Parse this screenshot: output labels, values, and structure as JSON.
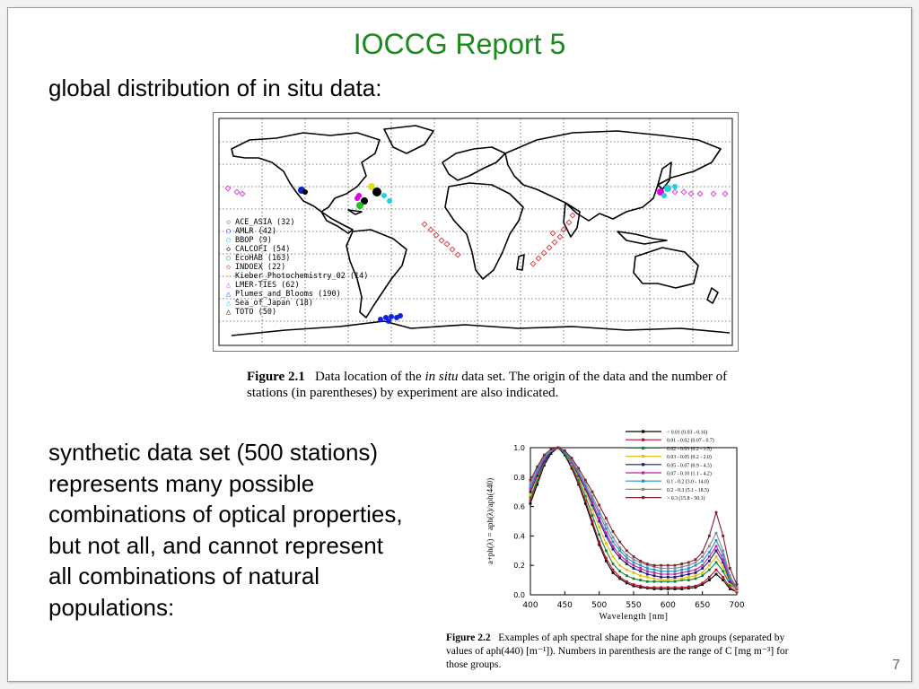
{
  "slide": {
    "title": "IOCCG Report 5",
    "bullet1": "global distribution of in situ data:",
    "body2_lines": [
      "synthetic data set (500 stations)",
      "represents many possible",
      "combinations of optical properties,",
      "but not all, and cannot represent",
      "all combinations of natural",
      "populations:"
    ],
    "page_number": "7"
  },
  "figure1": {
    "label": "Figure 2.1",
    "caption_pre": "Data location of the ",
    "caption_italic": "in situ",
    "caption_post": " data set. The origin of the data and the number of stations (in parentheses) by experiment are also indicated.",
    "legend": [
      {
        "label": "ACE_ASIA (32)",
        "symbol": "◇",
        "color": "#e040e0"
      },
      {
        "label": "AMLR (42)",
        "symbol": "○",
        "color": "#2040e0"
      },
      {
        "label": "BBOP (9)",
        "symbol": "○",
        "color": "#20c8e0"
      },
      {
        "label": "CALCOFI (54)",
        "symbol": "◇",
        "color": "#000000"
      },
      {
        "label": "EcoHAB (163)",
        "symbol": "○",
        "color": "#20b020"
      },
      {
        "label": "INDOEX (22)",
        "symbol": "◇",
        "color": "#e04040"
      },
      {
        "label": "Kieber_Photochemistry_02 (14)",
        "symbol": "☆",
        "color": "#e0d020"
      },
      {
        "label": "LMER-TIES (62)",
        "symbol": "△",
        "color": "#e040e0"
      },
      {
        "label": "Plumes_and_Blooms (190)",
        "symbol": "△",
        "color": "#2040e0"
      },
      {
        "label": "Sea_of_Japan (18)",
        "symbol": "△",
        "color": "#20c8e0"
      },
      {
        "label": "TOTO (50)",
        "symbol": "△",
        "color": "#000000"
      }
    ]
  },
  "figure2": {
    "label": "Figure 2.2",
    "caption": "Examples of aph spectral shape for the nine aph groups (separated by values of aph(440) [m⁻¹]). Numbers in parenthesis are the range of C [mg m⁻³] for those groups.",
    "chart_data": {
      "type": "line",
      "xlabel": "Wavelength  [nm]",
      "ylabel": "a+ph(λ) = aph(λ)/aph(440)",
      "xlim": [
        400,
        700
      ],
      "ylim": [
        0,
        1.0
      ],
      "xticks": [
        400,
        450,
        500,
        550,
        600,
        650,
        700
      ],
      "yticks": [
        0.0,
        0.2,
        0.4,
        0.6,
        0.8,
        1.0
      ],
      "x": [
        400,
        410,
        420,
        430,
        440,
        450,
        460,
        470,
        480,
        490,
        500,
        510,
        520,
        530,
        540,
        550,
        560,
        570,
        580,
        590,
        600,
        610,
        620,
        630,
        640,
        650,
        660,
        670,
        680,
        690,
        700
      ],
      "series": [
        {
          "name": "< 0.01 (0.03 - 0.16)",
          "color": "#000000",
          "values": [
            0.62,
            0.75,
            0.88,
            0.96,
            1.0,
            0.95,
            0.86,
            0.75,
            0.62,
            0.48,
            0.34,
            0.23,
            0.15,
            0.11,
            0.08,
            0.06,
            0.05,
            0.045,
            0.04,
            0.04,
            0.04,
            0.04,
            0.04,
            0.045,
            0.05,
            0.07,
            0.1,
            0.14,
            0.1,
            0.04,
            0.02
          ]
        },
        {
          "name": "0.01 - 0.02 (0.07 - 0.7)",
          "color": "#b01030",
          "values": [
            0.64,
            0.77,
            0.89,
            0.97,
            1.0,
            0.96,
            0.87,
            0.76,
            0.64,
            0.5,
            0.36,
            0.25,
            0.17,
            0.12,
            0.09,
            0.07,
            0.06,
            0.05,
            0.05,
            0.05,
            0.05,
            0.05,
            0.05,
            0.055,
            0.06,
            0.08,
            0.12,
            0.17,
            0.12,
            0.05,
            0.02
          ]
        },
        {
          "name": "0.02 - 0.03 (0.2 - 1.5)",
          "color": "#108040",
          "values": [
            0.66,
            0.78,
            0.9,
            0.97,
            1.0,
            0.96,
            0.88,
            0.78,
            0.67,
            0.54,
            0.41,
            0.3,
            0.21,
            0.16,
            0.13,
            0.11,
            0.1,
            0.09,
            0.09,
            0.09,
            0.09,
            0.09,
            0.1,
            0.1,
            0.11,
            0.13,
            0.17,
            0.22,
            0.16,
            0.07,
            0.03
          ]
        },
        {
          "name": "0.03 - 0.05 (0.2 - 2.0)",
          "color": "#e0c010",
          "values": [
            0.68,
            0.8,
            0.91,
            0.97,
            1.0,
            0.97,
            0.89,
            0.8,
            0.7,
            0.58,
            0.46,
            0.35,
            0.26,
            0.2,
            0.17,
            0.15,
            0.13,
            0.12,
            0.11,
            0.1,
            0.1,
            0.11,
            0.11,
            0.12,
            0.13,
            0.15,
            0.2,
            0.26,
            0.19,
            0.08,
            0.03
          ]
        },
        {
          "name": "0.05 - 0.07 (0.9 - 4.3)",
          "color": "#1a1a80",
          "values": [
            0.7,
            0.81,
            0.91,
            0.97,
            1.0,
            0.97,
            0.9,
            0.81,
            0.72,
            0.61,
            0.5,
            0.4,
            0.31,
            0.25,
            0.21,
            0.18,
            0.16,
            0.14,
            0.13,
            0.12,
            0.12,
            0.12,
            0.13,
            0.14,
            0.15,
            0.18,
            0.23,
            0.3,
            0.22,
            0.09,
            0.04
          ]
        },
        {
          "name": "0.07 - 0.10 (1.1 - 4.2)",
          "color": "#c020a0",
          "values": [
            0.72,
            0.83,
            0.92,
            0.98,
            1.0,
            0.97,
            0.9,
            0.82,
            0.73,
            0.63,
            0.52,
            0.42,
            0.33,
            0.27,
            0.23,
            0.2,
            0.18,
            0.16,
            0.15,
            0.14,
            0.14,
            0.14,
            0.15,
            0.16,
            0.17,
            0.2,
            0.26,
            0.33,
            0.24,
            0.1,
            0.04
          ]
        },
        {
          "name": "0.1 - 0.2 (3.0 - 14.0)",
          "color": "#2090d0",
          "values": [
            0.74,
            0.84,
            0.93,
            0.98,
            1.0,
            0.97,
            0.91,
            0.83,
            0.74,
            0.65,
            0.55,
            0.45,
            0.36,
            0.3,
            0.25,
            0.22,
            0.2,
            0.18,
            0.17,
            0.16,
            0.16,
            0.16,
            0.17,
            0.18,
            0.2,
            0.23,
            0.29,
            0.37,
            0.27,
            0.11,
            0.05
          ]
        },
        {
          "name": "0.2 - 0.3 (5.1 - 18.5)",
          "color": "#888888",
          "values": [
            0.76,
            0.86,
            0.94,
            0.98,
            1.0,
            0.98,
            0.92,
            0.84,
            0.76,
            0.67,
            0.57,
            0.48,
            0.39,
            0.32,
            0.27,
            0.24,
            0.22,
            0.2,
            0.19,
            0.18,
            0.18,
            0.18,
            0.19,
            0.2,
            0.22,
            0.26,
            0.33,
            0.42,
            0.3,
            0.13,
            0.05
          ]
        },
        {
          "name": "> 0.3 (15.8 - 50.1)",
          "color": "#802030",
          "values": [
            0.78,
            0.87,
            0.95,
            0.99,
            1.0,
            0.98,
            0.93,
            0.86,
            0.78,
            0.7,
            0.61,
            0.52,
            0.43,
            0.36,
            0.3,
            0.26,
            0.23,
            0.21,
            0.2,
            0.2,
            0.2,
            0.2,
            0.21,
            0.22,
            0.24,
            0.29,
            0.4,
            0.56,
            0.4,
            0.18,
            0.07
          ]
        }
      ]
    }
  }
}
